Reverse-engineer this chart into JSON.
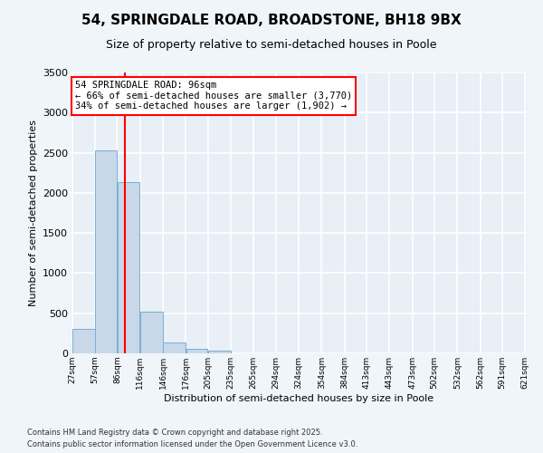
{
  "title": "54, SPRINGDALE ROAD, BROADSTONE, BH18 9BX",
  "subtitle": "Size of property relative to semi-detached houses in Poole",
  "xlabel": "Distribution of semi-detached houses by size in Poole",
  "ylabel": "Number of semi-detached properties",
  "bar_values": [
    310,
    2530,
    2130,
    520,
    140,
    60,
    30,
    0,
    0,
    0,
    0,
    0,
    0,
    0,
    0,
    0,
    0,
    0,
    0,
    0
  ],
  "bin_edges": [
    27,
    57,
    86,
    116,
    146,
    176,
    205,
    235,
    265,
    294,
    324,
    354,
    384,
    413,
    443,
    473,
    502,
    532,
    562,
    591,
    621
  ],
  "tick_labels": [
    "27sqm",
    "57sqm",
    "86sqm",
    "116sqm",
    "146sqm",
    "176sqm",
    "205sqm",
    "235sqm",
    "265sqm",
    "294sqm",
    "324sqm",
    "354sqm",
    "384sqm",
    "413sqm",
    "443sqm",
    "473sqm",
    "502sqm",
    "532sqm",
    "562sqm",
    "591sqm",
    "621sqm"
  ],
  "bar_color": "#c8d8e8",
  "bar_edge_color": "#7aafd4",
  "red_line_x": 96,
  "annotation_title": "54 SPRINGDALE ROAD: 96sqm",
  "annotation_line1": "← 66% of semi-detached houses are smaller (3,770)",
  "annotation_line2": "34% of semi-detached houses are larger (1,902) →",
  "ylim": [
    0,
    3500
  ],
  "yticks": [
    0,
    500,
    1000,
    1500,
    2000,
    2500,
    3000,
    3500
  ],
  "bg_color": "#e8eff6",
  "fig_bg_color": "#f0f5fa",
  "grid_color": "#ffffff",
  "footer1": "Contains HM Land Registry data © Crown copyright and database right 2025.",
  "footer2": "Contains public sector information licensed under the Open Government Licence v3.0."
}
